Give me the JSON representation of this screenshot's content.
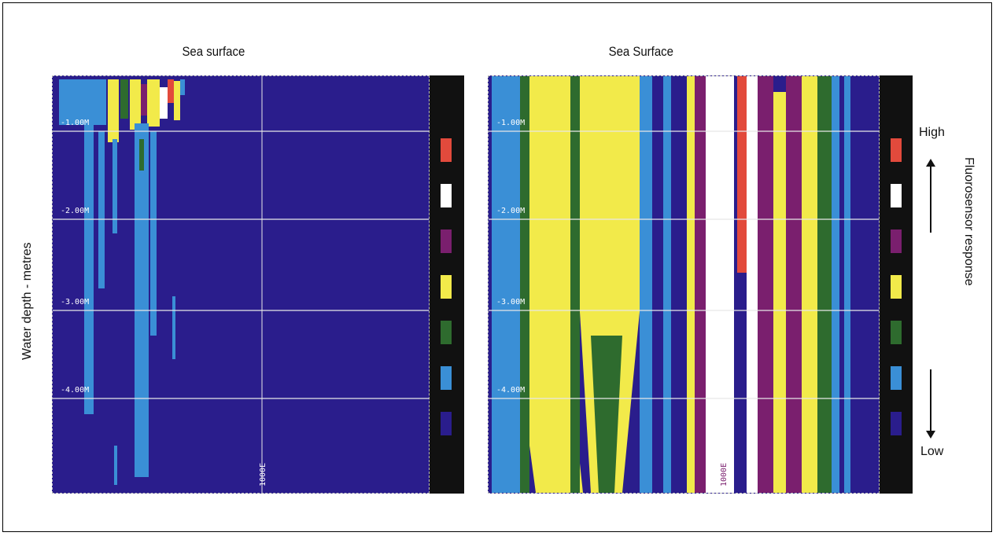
{
  "titles": {
    "left": "Sea surface",
    "right": "Sea Surface"
  },
  "y_axis_label": "Water depth - metres",
  "colorbar_label": "Fluorosensor response",
  "scale": {
    "high": "High",
    "low": "Low"
  },
  "depth_ticks": [
    "-1.00M",
    "-2.00M",
    "-3.00M",
    "-4.00M"
  ],
  "marker_label": "1000E",
  "colors": {
    "background": "#2a1d8c",
    "red": "#e24a3c",
    "white": "#ffffff",
    "purple": "#7a1f6e",
    "yellow": "#f2ea4a",
    "green": "#2e6b2e",
    "blue": "#3a8fd6",
    "dark_blue": "#2a1d8c"
  },
  "colorbar_levels": [
    "red",
    "white",
    "purple",
    "yellow",
    "green",
    "blue",
    "dark_blue"
  ]
}
